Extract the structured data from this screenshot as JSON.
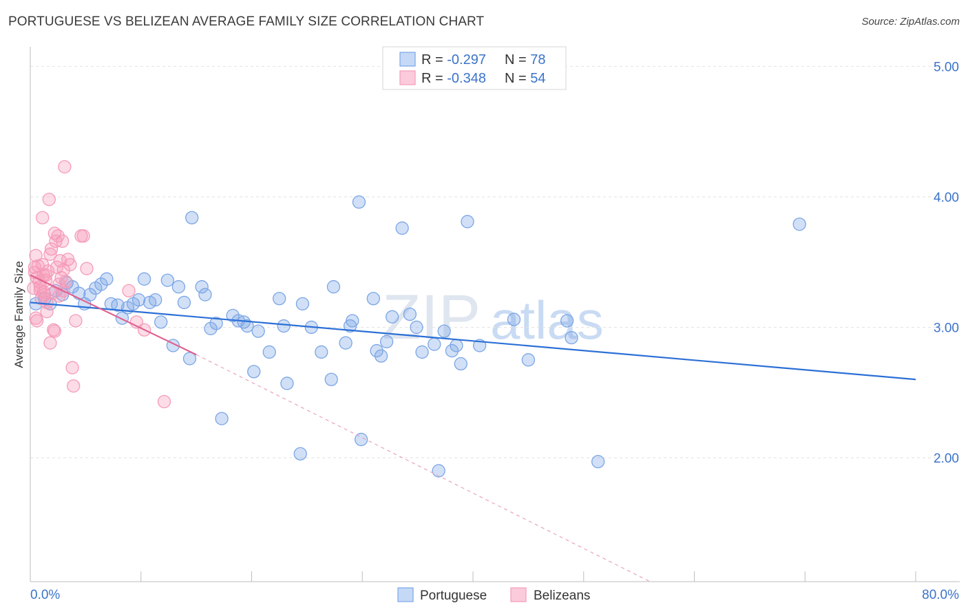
{
  "title": "PORTUGUESE VS BELIZEAN AVERAGE FAMILY SIZE CORRELATION CHART",
  "source": "Source: ZipAtlas.com",
  "watermark": {
    "zip": "ZIP",
    "atlas": "atlas"
  },
  "legend": {
    "rows": [
      {
        "r_label": "R = ",
        "r_value": "-0.297",
        "n_label": "N = ",
        "n_value": "78"
      },
      {
        "r_label": "R = ",
        "r_value": "-0.348",
        "n_label": "N = ",
        "n_value": "54"
      }
    ]
  },
  "bottom_legend": [
    "Portuguese",
    "Belizeans"
  ],
  "chart_data": {
    "type": "scatter",
    "title": "PORTUGUESE VS BELIZEAN AVERAGE FAMILY SIZE CORRELATION CHART",
    "xlabel": "",
    "ylabel": "Average Family Size",
    "xlim": [
      0,
      80
    ],
    "ylim": [
      1.05,
      5.15
    ],
    "x_tick_labels": {
      "min": "0.0%",
      "max": "80.0%"
    },
    "y_ticks": [
      2.0,
      3.0,
      4.0,
      5.0
    ],
    "y_tick_labels": [
      "2.00",
      "3.00",
      "4.00",
      "5.00"
    ],
    "grid": true,
    "colors": {
      "portuguese": "#7ba5e6",
      "belizeans": "#f59ab8",
      "blue_line": "#2b6fd6",
      "pink_line": "#e0608f"
    },
    "series": [
      {
        "name": "Portuguese",
        "r": -0.297,
        "n": 78,
        "trend": {
          "x0": 0,
          "y0": 3.19,
          "x1": 80,
          "y1": 2.6
        },
        "points": [
          [
            0.5,
            3.18
          ],
          [
            1.3,
            3.22
          ],
          [
            1.8,
            3.18
          ],
          [
            2.3,
            3.28
          ],
          [
            2.9,
            3.25
          ],
          [
            3.3,
            3.34
          ],
          [
            3.8,
            3.31
          ],
          [
            4.4,
            3.26
          ],
          [
            4.9,
            3.18
          ],
          [
            5.4,
            3.25
          ],
          [
            5.9,
            3.3
          ],
          [
            6.4,
            3.33
          ],
          [
            6.9,
            3.37
          ],
          [
            7.3,
            3.18
          ],
          [
            7.9,
            3.17
          ],
          [
            8.3,
            3.07
          ],
          [
            8.8,
            3.15
          ],
          [
            9.3,
            3.18
          ],
          [
            9.8,
            3.21
          ],
          [
            10.3,
            3.37
          ],
          [
            10.8,
            3.19
          ],
          [
            11.3,
            3.21
          ],
          [
            11.8,
            3.04
          ],
          [
            12.4,
            3.36
          ],
          [
            12.9,
            2.86
          ],
          [
            13.4,
            3.31
          ],
          [
            13.9,
            3.19
          ],
          [
            14.4,
            2.76
          ],
          [
            14.6,
            3.84
          ],
          [
            15.5,
            3.31
          ],
          [
            15.8,
            3.25
          ],
          [
            16.3,
            2.99
          ],
          [
            16.8,
            3.03
          ],
          [
            17.3,
            2.3
          ],
          [
            18.3,
            3.09
          ],
          [
            18.8,
            3.05
          ],
          [
            19.3,
            3.04
          ],
          [
            19.6,
            3.01
          ],
          [
            20.2,
            2.66
          ],
          [
            20.6,
            2.97
          ],
          [
            21.6,
            2.81
          ],
          [
            22.5,
            3.22
          ],
          [
            22.9,
            3.01
          ],
          [
            23.2,
            2.57
          ],
          [
            24.4,
            2.03
          ],
          [
            24.6,
            3.18
          ],
          [
            25.4,
            3.0
          ],
          [
            26.3,
            2.81
          ],
          [
            27.2,
            2.6
          ],
          [
            27.4,
            3.31
          ],
          [
            28.5,
            2.88
          ],
          [
            28.9,
            3.01
          ],
          [
            29.1,
            3.05
          ],
          [
            29.9,
            2.14
          ],
          [
            31.0,
            3.22
          ],
          [
            31.3,
            2.82
          ],
          [
            31.7,
            2.78
          ],
          [
            32.2,
            2.89
          ],
          [
            32.7,
            3.08
          ],
          [
            33.6,
            3.76
          ],
          [
            34.3,
            3.1
          ],
          [
            34.9,
            3.0
          ],
          [
            35.4,
            2.81
          ],
          [
            36.5,
            2.87
          ],
          [
            36.9,
            1.9
          ],
          [
            37.4,
            2.97
          ],
          [
            38.1,
            2.82
          ],
          [
            38.5,
            2.86
          ],
          [
            38.9,
            2.72
          ],
          [
            39.5,
            3.81
          ],
          [
            40.6,
            2.86
          ],
          [
            43.7,
            3.06
          ],
          [
            45.0,
            2.75
          ],
          [
            48.5,
            3.05
          ],
          [
            48.9,
            2.92
          ],
          [
            51.3,
            1.97
          ],
          [
            69.5,
            3.79
          ],
          [
            29.7,
            3.96
          ]
        ]
      },
      {
        "name": "Belizeans",
        "r": -0.348,
        "n": 54,
        "trend": {
          "x0": 0,
          "y0": 3.4,
          "x1": 15.0,
          "y1": 2.79,
          "dash_x1": 56.0,
          "dash_y1": 1.05
        },
        "points": [
          [
            0.3,
            3.3
          ],
          [
            0.4,
            3.42
          ],
          [
            0.5,
            3.55
          ],
          [
            0.6,
            3.05
          ],
          [
            0.7,
            3.47
          ],
          [
            0.8,
            3.35
          ],
          [
            0.9,
            3.28
          ],
          [
            1.0,
            3.22
          ],
          [
            1.1,
            3.84
          ],
          [
            1.2,
            3.4
          ],
          [
            1.3,
            3.25
          ],
          [
            1.4,
            3.36
          ],
          [
            1.5,
            3.12
          ],
          [
            1.6,
            3.43
          ],
          [
            1.7,
            3.98
          ],
          [
            1.8,
            2.88
          ],
          [
            1.9,
            3.6
          ],
          [
            2.0,
            3.26
          ],
          [
            2.1,
            2.98
          ],
          [
            2.2,
            3.72
          ],
          [
            2.3,
            3.66
          ],
          [
            2.4,
            3.46
          ],
          [
            2.5,
            3.7
          ],
          [
            2.6,
            3.24
          ],
          [
            2.7,
            3.51
          ],
          [
            2.8,
            3.38
          ],
          [
            2.9,
            3.66
          ],
          [
            3.0,
            3.28
          ],
          [
            3.1,
            4.23
          ],
          [
            3.2,
            3.35
          ],
          [
            3.4,
            3.52
          ],
          [
            3.6,
            3.48
          ],
          [
            3.8,
            2.69
          ],
          [
            3.9,
            2.55
          ],
          [
            4.1,
            3.05
          ],
          [
            4.6,
            3.7
          ],
          [
            4.8,
            3.7
          ],
          [
            5.1,
            3.45
          ],
          [
            8.9,
            3.28
          ],
          [
            9.6,
            3.04
          ],
          [
            10.3,
            2.98
          ],
          [
            12.1,
            2.43
          ],
          [
            0.4,
            3.46
          ],
          [
            0.6,
            3.38
          ],
          [
            0.9,
            3.31
          ],
          [
            1.2,
            3.27
          ],
          [
            1.5,
            3.19
          ],
          [
            1.8,
            3.56
          ],
          [
            2.2,
            2.97
          ],
          [
            2.6,
            3.33
          ],
          [
            3.0,
            3.44
          ],
          [
            0.5,
            3.07
          ],
          [
            1.1,
            3.48
          ],
          [
            1.4,
            3.4
          ]
        ]
      }
    ]
  }
}
